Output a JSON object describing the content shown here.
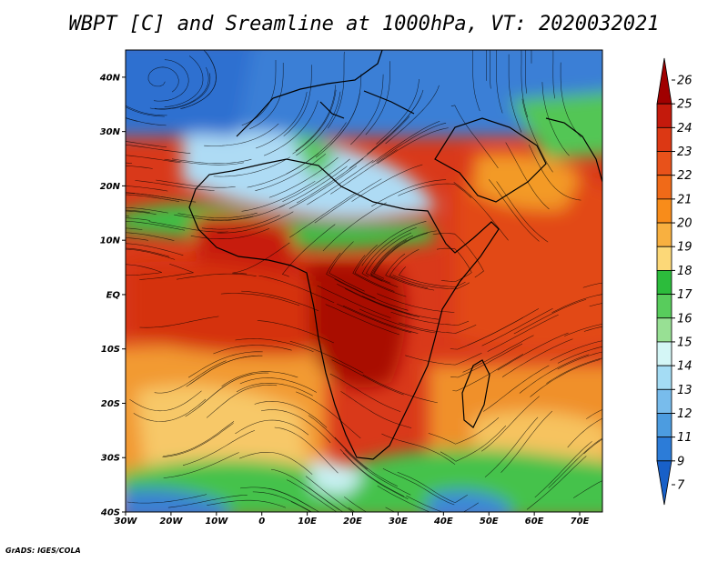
{
  "title": "WBPT [C] and Sreamline at 1000hPa, VT: 2020032021",
  "credit": "GrADS: IGES/COLA",
  "map": {
    "lon_range": [
      -30,
      75
    ],
    "lat_range": [
      -40,
      45
    ],
    "lat_ticks": [
      {
        "value": 40,
        "label": "40N"
      },
      {
        "value": 30,
        "label": "30N"
      },
      {
        "value": 20,
        "label": "20N"
      },
      {
        "value": 10,
        "label": "10N"
      },
      {
        "value": 0,
        "label": "EQ"
      },
      {
        "value": -10,
        "label": "10S"
      },
      {
        "value": -20,
        "label": "20S"
      },
      {
        "value": -30,
        "label": "30S"
      },
      {
        "value": -40,
        "label": "40S"
      }
    ],
    "lon_ticks": [
      {
        "value": -30,
        "label": "30W"
      },
      {
        "value": -20,
        "label": "20W"
      },
      {
        "value": -10,
        "label": "10W"
      },
      {
        "value": 0,
        "label": "0"
      },
      {
        "value": 10,
        "label": "10E"
      },
      {
        "value": 20,
        "label": "20E"
      },
      {
        "value": 30,
        "label": "30E"
      },
      {
        "value": 40,
        "label": "40E"
      },
      {
        "value": 50,
        "label": "50E"
      },
      {
        "value": 60,
        "label": "60E"
      },
      {
        "value": 70,
        "label": "70E"
      }
    ]
  },
  "colorbar": {
    "labels": [
      "26",
      "25",
      "24",
      "23",
      "22",
      "21",
      "20",
      "19",
      "18",
      "17",
      "16",
      "15",
      "14",
      "13",
      "12",
      "11",
      "9",
      "7"
    ],
    "colors": [
      "#a00000",
      "#c41a0c",
      "#dc3814",
      "#e8521a",
      "#f06a18",
      "#f88c1a",
      "#f8b040",
      "#fcd878",
      "#2cbc3c",
      "#58cc5c",
      "#98e094",
      "#d4f6f6",
      "#a4dcf4",
      "#78bcec",
      "#4c9ce0",
      "#2c7cd8",
      "#1860c8"
    ]
  },
  "colors": {
    "deep_red": "#b00c06",
    "red": "#d63412",
    "orange_red": "#e85018",
    "orange": "#f4901e",
    "yellow": "#f8cc68",
    "green": "#40c048",
    "light_green": "#9ee096",
    "cyan": "#cff2f4",
    "light_blue": "#8ecaf0",
    "blue": "#3c84d8",
    "dark_blue": "#1c5cc4"
  }
}
